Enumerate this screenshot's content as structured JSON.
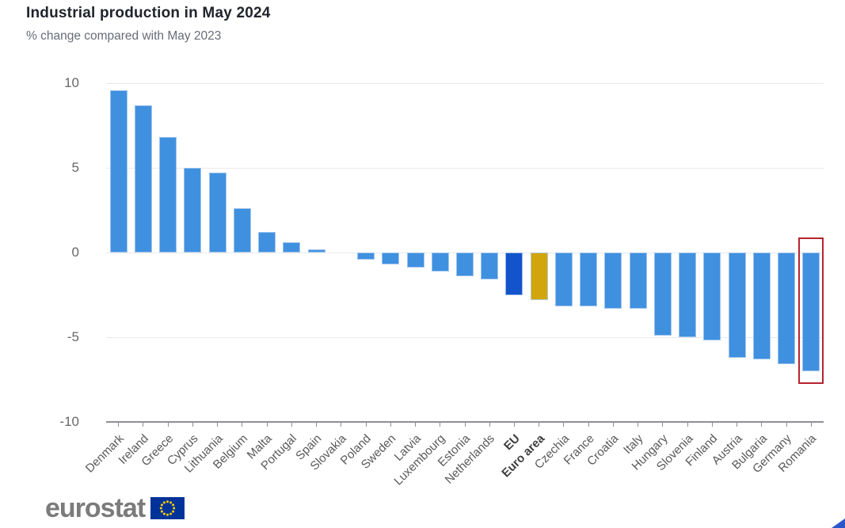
{
  "chart_data": {
    "type": "bar",
    "title": "Industrial production in May 2024",
    "subtitle": "% change compared with May 2023",
    "categories": [
      "Denmark",
      "Ireland",
      "Greece",
      "Cyprus",
      "Lithuania",
      "Belgium",
      "Malta",
      "Portugal",
      "Spain",
      "Slovakia",
      "Poland",
      "Sweden",
      "Latvia",
      "Luxembourg",
      "Estonia",
      "Netherlands",
      "EU",
      "Euro area",
      "Czechia",
      "France",
      "Croatia",
      "Italy",
      "Hungary",
      "Slovenia",
      "Finland",
      "Austria",
      "Bulgaria",
      "Germany",
      "Romania"
    ],
    "values": [
      9.6,
      8.7,
      6.8,
      5.0,
      4.7,
      2.6,
      1.2,
      0.6,
      0.2,
      0.0,
      -0.4,
      -0.7,
      -0.9,
      -1.1,
      -1.4,
      -1.6,
      -2.5,
      -2.8,
      -3.2,
      -3.2,
      -3.3,
      -3.3,
      -4.9,
      -5.0,
      -5.2,
      -6.2,
      -6.3,
      -6.6,
      -7.0
    ],
    "bold_categories": [
      "EU",
      "Euro area"
    ],
    "highlighted_category": "Romania",
    "yticks": [
      10,
      5,
      0,
      -5,
      -10
    ],
    "ylim": [
      -10,
      10
    ],
    "xlabel": "",
    "ylabel": "",
    "grid": true,
    "legend": false,
    "colors": {
      "bar_default": "#4090e0",
      "highlight_box": "#b5242e",
      "gridline": "#e7e9ec",
      "axis_line": "#8f8f94",
      "tick_mark": "#8f8f94",
      "tick_label": "#666666"
    },
    "series_colors_by_category": {
      "EU": "#1353cb",
      "Euro area": "#d2a40d"
    }
  },
  "footer": {
    "logo_text": "eurostat",
    "flag_icon": "eu-flag-icon",
    "flag_blue": "#003399",
    "flag_star": "#ffcc00",
    "corner_triangle_color": "#2b57c8"
  }
}
